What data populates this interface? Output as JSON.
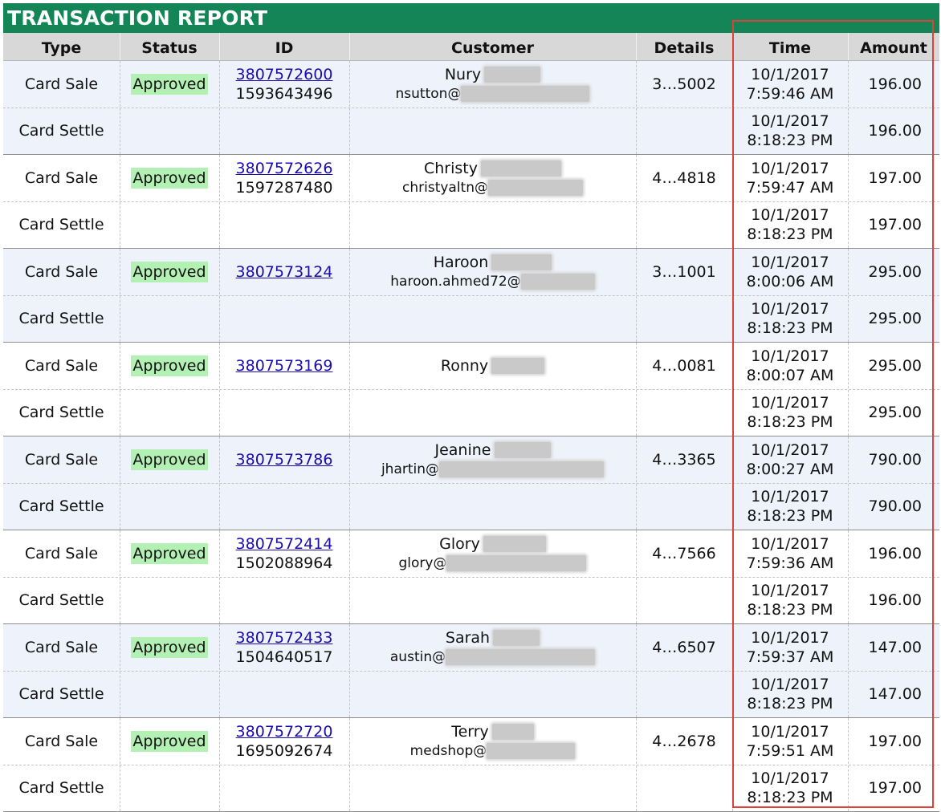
{
  "report": {
    "title": "TRANSACTION REPORT"
  },
  "columns": {
    "type": "Type",
    "status": "Status",
    "id": "ID",
    "customer": "Customer",
    "details": "Details",
    "time": "Time",
    "amount": "Amount"
  },
  "colors": {
    "header_bar": "#138556",
    "approved_badge": "#b3f0b3",
    "highlight_border": "#e0403a",
    "shaded_row": "#eef3fb"
  },
  "transactions": [
    {
      "sale_type": "Card Sale",
      "settle_type": "Card Settle",
      "status": "Approved",
      "id": "3807572600",
      "sub_id": "1593643496",
      "name": "Nury",
      "email": "nsutton@",
      "details": "3…5002",
      "sale_date": "10/1/2017",
      "sale_time": "7:59:46 AM",
      "settle_date": "10/1/2017",
      "settle_time": "8:18:23 PM",
      "amount": "196.00",
      "settle_amount": "196.00"
    },
    {
      "sale_type": "Card Sale",
      "settle_type": "Card Settle",
      "status": "Approved",
      "id": "3807572626",
      "sub_id": "1597287480",
      "name": "Christy",
      "email": "christyaltn@",
      "details": "4…4818",
      "sale_date": "10/1/2017",
      "sale_time": "7:59:47 AM",
      "settle_date": "10/1/2017",
      "settle_time": "8:18:23 PM",
      "amount": "197.00",
      "settle_amount": "197.00"
    },
    {
      "sale_type": "Card Sale",
      "settle_type": "Card Settle",
      "status": "Approved",
      "id": "3807573124",
      "sub_id": "",
      "name": "Haroon",
      "email": "haroon.ahmed72@",
      "details": "3…1001",
      "sale_date": "10/1/2017",
      "sale_time": "8:00:06 AM",
      "settle_date": "10/1/2017",
      "settle_time": "8:18:23 PM",
      "amount": "295.00",
      "settle_amount": "295.00"
    },
    {
      "sale_type": "Card Sale",
      "settle_type": "Card Settle",
      "status": "Approved",
      "id": "3807573169",
      "sub_id": "",
      "name": "Ronny",
      "email": "",
      "details": "4…0081",
      "sale_date": "10/1/2017",
      "sale_time": "8:00:07 AM",
      "settle_date": "10/1/2017",
      "settle_time": "8:18:23 PM",
      "amount": "295.00",
      "settle_amount": "295.00"
    },
    {
      "sale_type": "Card Sale",
      "settle_type": "Card Settle",
      "status": "Approved",
      "id": "3807573786",
      "sub_id": "",
      "name": "Jeanine",
      "email": "jhartin@",
      "details": "4…3365",
      "sale_date": "10/1/2017",
      "sale_time": "8:00:27 AM",
      "settle_date": "10/1/2017",
      "settle_time": "8:18:23 PM",
      "amount": "790.00",
      "settle_amount": "790.00"
    },
    {
      "sale_type": "Card Sale",
      "settle_type": "Card Settle",
      "status": "Approved",
      "id": "3807572414",
      "sub_id": "1502088964",
      "name": "Glory",
      "email": "glory@",
      "details": "4…7566",
      "sale_date": "10/1/2017",
      "sale_time": "7:59:36 AM",
      "settle_date": "10/1/2017",
      "settle_time": "8:18:23 PM",
      "amount": "196.00",
      "settle_amount": "196.00"
    },
    {
      "sale_type": "Card Sale",
      "settle_type": "Card Settle",
      "status": "Approved",
      "id": "3807572433",
      "sub_id": "1504640517",
      "name": "Sarah",
      "email": "austin@",
      "details": "4…6507",
      "sale_date": "10/1/2017",
      "sale_time": "7:59:37 AM",
      "settle_date": "10/1/2017",
      "settle_time": "8:18:23 PM",
      "amount": "147.00",
      "settle_amount": "147.00"
    },
    {
      "sale_type": "Card Sale",
      "settle_type": "Card Settle",
      "status": "Approved",
      "id": "3807572720",
      "sub_id": "1695092674",
      "name": "Terry",
      "email": "medshop@",
      "details": "4…2678",
      "sale_date": "10/1/2017",
      "sale_time": "7:59:51 AM",
      "settle_date": "10/1/2017",
      "settle_time": "8:18:23 PM",
      "amount": "197.00",
      "settle_amount": "197.00"
    }
  ]
}
